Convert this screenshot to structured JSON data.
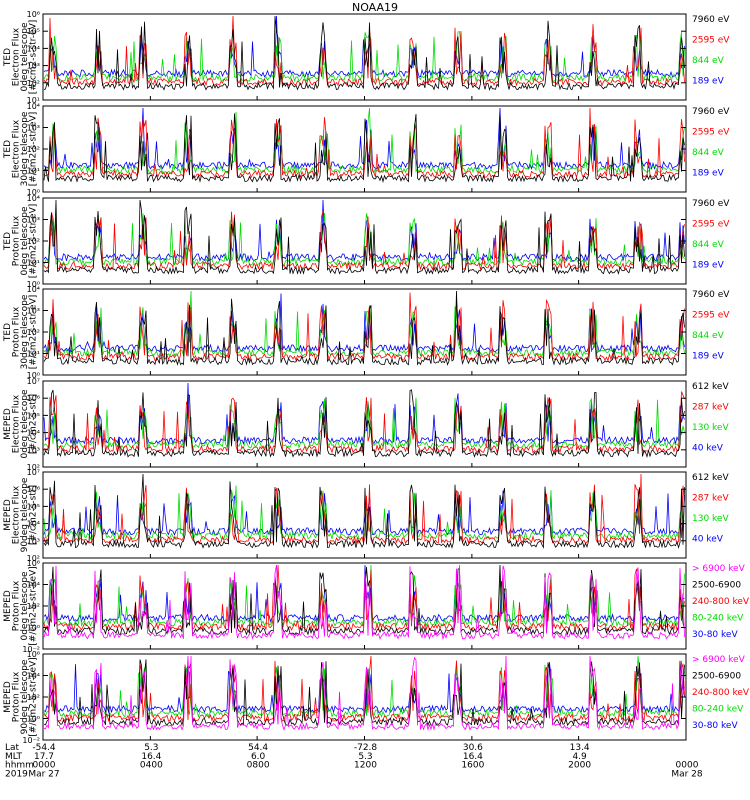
{
  "title": "NOAA19",
  "chart_data": [
    {
      "type": "line",
      "title": "NOAA19",
      "ylabel": [
        "TED",
        "Electron Flux",
        "0deg telescope",
        "[#/cm2-s-str-eV]"
      ],
      "yticks": [
        "10¹",
        "10²",
        "10³",
        "10⁴",
        "10⁵",
        "10⁶"
      ],
      "ylim_exp": [
        1,
        6
      ],
      "yscale": "log",
      "series": [
        {
          "name": "7960 eV",
          "color": "#000000"
        },
        {
          "name": "2595 eV",
          "color": "#ff0000"
        },
        {
          "name": "844 eV",
          "color": "#00dd00"
        },
        {
          "name": "189 eV",
          "color": "#0000ff"
        }
      ]
    },
    {
      "type": "line",
      "ylabel": [
        "TED",
        "Electron Flux",
        "30deg telescope",
        "[#/cm2-s-str-eV]"
      ],
      "yticks": [
        "10⁰",
        "10¹",
        "10²",
        "10³",
        "10⁴"
      ],
      "ylim_exp": [
        0,
        5
      ],
      "yscale": "log",
      "series": [
        {
          "name": "7960 eV",
          "color": "#000000"
        },
        {
          "name": "2595 eV",
          "color": "#ff0000"
        },
        {
          "name": "844 eV",
          "color": "#00dd00"
        },
        {
          "name": "189 eV",
          "color": "#0000ff"
        }
      ]
    },
    {
      "type": "line",
      "ylabel": [
        "TED",
        "Proton Flux",
        "0deg telescope",
        "[#/cm2-s-str-eV]"
      ],
      "yticks": [
        "10⁰",
        "10¹",
        "10²",
        "10³",
        "10⁴"
      ],
      "ylim_exp": [
        0,
        5
      ],
      "yscale": "log",
      "series": [
        {
          "name": "7960 eV",
          "color": "#000000"
        },
        {
          "name": "2595 eV",
          "color": "#ff0000"
        },
        {
          "name": "844 eV",
          "color": "#00dd00"
        },
        {
          "name": "189 eV",
          "color": "#0000ff"
        }
      ]
    },
    {
      "type": "line",
      "ylabel": [
        "TED",
        "Proton Flux",
        "30deg telescope",
        "[#/cm2-s-str-eV]"
      ],
      "yticks": [
        "10⁰",
        "10¹",
        "10²",
        "10³",
        "10⁴"
      ],
      "ylim_exp": [
        0,
        5
      ],
      "yscale": "log",
      "series": [
        {
          "name": "7960 eV",
          "color": "#000000"
        },
        {
          "name": "2595 eV",
          "color": "#ff0000"
        },
        {
          "name": "844 eV",
          "color": "#00dd00"
        },
        {
          "name": "189 eV",
          "color": "#0000ff"
        }
      ]
    },
    {
      "type": "line",
      "ylabel": [
        "MEPED",
        "Electron Flux",
        "0deg telescope",
        "[#/cm2-s-str]"
      ],
      "yticks": [
        "10²",
        "10³",
        "10⁴",
        "10⁵",
        "10⁶",
        "10⁷"
      ],
      "ylim_exp": [
        2,
        7
      ],
      "yscale": "log",
      "series": [
        {
          "name": "612 keV",
          "color": "#000000"
        },
        {
          "name": "287 keV",
          "color": "#ff0000"
        },
        {
          "name": "130 keV",
          "color": "#00dd00"
        },
        {
          "name": "40 keV",
          "color": "#0000ff"
        }
      ]
    },
    {
      "type": "line",
      "ylabel": [
        "MEPED",
        "Electron Flux",
        "90deg telescope",
        "[#/cm2-s-str]"
      ],
      "yticks": [
        "10²",
        "10³",
        "10⁴",
        "10⁵",
        "10⁶",
        "10⁷"
      ],
      "ylim_exp": [
        2,
        7
      ],
      "yscale": "log",
      "series": [
        {
          "name": "612 keV",
          "color": "#000000"
        },
        {
          "name": "287 keV",
          "color": "#ff0000"
        },
        {
          "name": "130 keV",
          "color": "#00dd00"
        },
        {
          "name": "40 keV",
          "color": "#0000ff"
        }
      ]
    },
    {
      "type": "line",
      "ylabel": [
        "MEPED",
        "Proton Flux",
        "0deg telescope",
        "[#/cm2-s-str-keV]"
      ],
      "yticks": [
        "10⁻²",
        "10⁰",
        "10²",
        "10⁴",
        "10⁶"
      ],
      "ylim_exp": [
        -2,
        6
      ],
      "yscale": "log",
      "series": [
        {
          "name": "> 6900 keV",
          "color": "#ff00ff"
        },
        {
          "name": "2500-6900",
          "color": "#000000"
        },
        {
          "name": "240-800 keV",
          "color": "#ff0000"
        },
        {
          "name": "80-240 keV",
          "color": "#00dd00"
        },
        {
          "name": "30-80 keV",
          "color": "#0000ff"
        }
      ]
    },
    {
      "type": "line",
      "ylabel": [
        "MEPED",
        "Proton Flux",
        "90deg telescope",
        "[#/cm2-s-str-keV]"
      ],
      "yticks": [
        "10⁻²",
        "10⁰",
        "10²",
        "10⁴",
        "10⁶"
      ],
      "ylim_exp": [
        -2,
        6
      ],
      "yscale": "log",
      "series": [
        {
          "name": "> 6900 keV",
          "color": "#ff00ff"
        },
        {
          "name": "2500-6900",
          "color": "#000000"
        },
        {
          "name": "240-800 keV",
          "color": "#ff0000"
        },
        {
          "name": "80-240 keV",
          "color": "#00dd00"
        },
        {
          "name": "30-80 keV",
          "color": "#0000ff"
        }
      ]
    }
  ],
  "x_axis": {
    "row_labels": [
      "Lat",
      "MLT",
      "hhmm",
      "2019"
    ],
    "columns": [
      {
        "frac": 0.0,
        "lat": "-54.4",
        "mlt": "17.7",
        "hhmm": "0000",
        "date": "Mar 27"
      },
      {
        "frac": 0.167,
        "lat": "5.3",
        "mlt": "16.4",
        "hhmm": "0400",
        "date": ""
      },
      {
        "frac": 0.333,
        "lat": "54.4",
        "mlt": "6.0",
        "hhmm": "0800",
        "date": ""
      },
      {
        "frac": 0.5,
        "lat": "-72.8",
        "mlt": "5.3",
        "hhmm": "1200",
        "date": ""
      },
      {
        "frac": 0.667,
        "lat": "30.6",
        "mlt": "16.4",
        "hhmm": "1600",
        "date": ""
      },
      {
        "frac": 0.833,
        "lat": "13.4",
        "mlt": "4.9",
        "hhmm": "2000",
        "date": ""
      },
      {
        "frac": 1.0,
        "lat": "",
        "mlt": "",
        "hhmm": "0000",
        "date": "Mar 28"
      }
    ]
  }
}
